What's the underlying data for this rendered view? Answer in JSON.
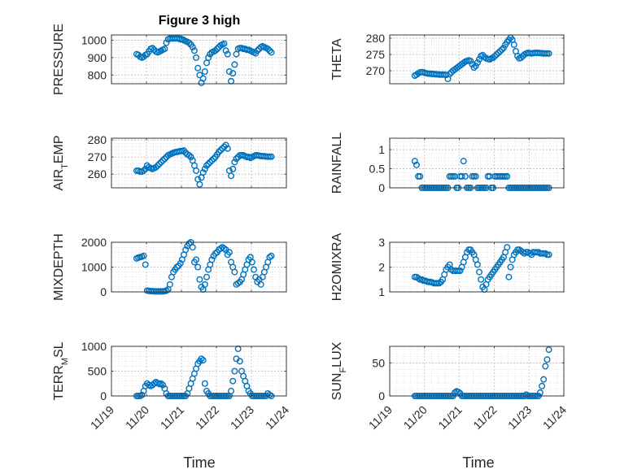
{
  "figure": {
    "title": "Figure 3 high",
    "x_tick_labels": [
      "11/19",
      "11/20",
      "11/21",
      "11/22",
      "11/23",
      "11/24"
    ],
    "xlabel": "Time",
    "marker_color": "#0072BD"
  },
  "chart_data": [
    {
      "type": "scatter",
      "ylabel": "PRESSURE",
      "xlim": [
        0,
        5
      ],
      "ylim": [
        750,
        1030
      ],
      "y_ticks": [
        800,
        900,
        1000
      ],
      "grid": true,
      "x": [
        0.72,
        0.77,
        0.82,
        0.87,
        0.92,
        0.97,
        1.02,
        1.07,
        1.12,
        1.17,
        1.22,
        1.27,
        1.32,
        1.37,
        1.42,
        1.47,
        1.52,
        1.57,
        1.62,
        1.67,
        1.72,
        1.77,
        1.82,
        1.87,
        1.92,
        1.97,
        2.02,
        2.07,
        2.12,
        2.17,
        2.22,
        2.27,
        2.32,
        2.37,
        2.42,
        2.47,
        2.52,
        2.57,
        2.62,
        2.67,
        2.72,
        2.77,
        2.82,
        2.87,
        2.92,
        2.97,
        3.02,
        3.07,
        3.12,
        3.17,
        3.22,
        3.27,
        3.32,
        3.37,
        3.42,
        3.47,
        3.52,
        3.57,
        3.62,
        3.67,
        3.72,
        3.77,
        3.82,
        3.87,
        3.92,
        3.97,
        4.02,
        4.07,
        4.12,
        4.17,
        4.22,
        4.27,
        4.32,
        4.37,
        4.42,
        4.47,
        4.52,
        4.57
      ],
      "y": [
        920,
        915,
        905,
        900,
        905,
        915,
        920,
        935,
        950,
        955,
        945,
        935,
        930,
        935,
        940,
        945,
        950,
        985,
        1005,
        1010,
        1010,
        1010,
        1010,
        1010,
        1010,
        1005,
        1005,
        1000,
        995,
        990,
        985,
        975,
        960,
        940,
        900,
        840,
        800,
        755,
        780,
        820,
        870,
        900,
        920,
        930,
        935,
        940,
        950,
        960,
        970,
        975,
        980,
        940,
        920,
        820,
        765,
        810,
        860,
        920,
        950,
        955,
        955,
        950,
        950,
        945,
        945,
        940,
        935,
        930,
        925,
        940,
        950,
        960,
        965,
        960,
        955,
        950,
        940,
        930
      ]
    },
    {
      "type": "scatter",
      "ylabel": "THETA",
      "xlim": [
        0,
        5
      ],
      "ylim": [
        266,
        281
      ],
      "y_ticks": [
        270,
        275,
        280
      ],
      "grid": true,
      "x": [
        0.72,
        0.77,
        0.82,
        0.87,
        0.92,
        0.97,
        1.02,
        1.07,
        1.12,
        1.17,
        1.22,
        1.27,
        1.32,
        1.37,
        1.42,
        1.47,
        1.52,
        1.57,
        1.62,
        1.67,
        1.72,
        1.77,
        1.82,
        1.87,
        1.92,
        1.97,
        2.02,
        2.07,
        2.12,
        2.17,
        2.22,
        2.27,
        2.32,
        2.37,
        2.42,
        2.47,
        2.52,
        2.57,
        2.62,
        2.67,
        2.72,
        2.77,
        2.82,
        2.87,
        2.92,
        2.97,
        3.02,
        3.07,
        3.12,
        3.17,
        3.22,
        3.27,
        3.32,
        3.37,
        3.42,
        3.47,
        3.52,
        3.57,
        3.62,
        3.67,
        3.72,
        3.77,
        3.82,
        3.87,
        3.92,
        3.97,
        4.02,
        4.07,
        4.12,
        4.17,
        4.22,
        4.27,
        4.32,
        4.37,
        4.42,
        4.47,
        4.52,
        4.57
      ],
      "y": [
        268.5,
        268.8,
        269.2,
        269.5,
        269.6,
        269.5,
        269.3,
        269.2,
        269.1,
        269.1,
        269.0,
        269.0,
        268.9,
        268.9,
        268.8,
        268.8,
        268.8,
        268.8,
        268.7,
        267.5,
        269.0,
        269.5,
        270.0,
        270.4,
        270.8,
        271.2,
        271.6,
        272.0,
        272.4,
        272.8,
        273.0,
        273.2,
        273.0,
        272.0,
        271.0,
        271.5,
        272.5,
        273.5,
        274.5,
        274.8,
        274.2,
        273.8,
        273.6,
        273.5,
        273.8,
        274.0,
        274.5,
        275.0,
        275.5,
        276.0,
        276.5,
        277.0,
        278.0,
        278.8,
        279.5,
        280.2,
        279.5,
        278.0,
        276.0,
        274.5,
        273.8,
        274.0,
        274.5,
        275.0,
        275.3,
        275.5,
        275.4,
        275.3,
        275.4,
        275.5,
        275.5,
        275.5,
        275.4,
        275.4,
        275.3,
        275.3,
        275.3,
        275.3
      ]
    },
    {
      "type": "scatter",
      "ylabel": "AIR_TEMP",
      "xlim": [
        0,
        5
      ],
      "ylim": [
        252,
        281
      ],
      "y_ticks": [
        260,
        270,
        280
      ],
      "grid": true,
      "x": [
        0.72,
        0.77,
        0.82,
        0.87,
        0.92,
        0.97,
        1.02,
        1.07,
        1.12,
        1.17,
        1.22,
        1.27,
        1.32,
        1.37,
        1.42,
        1.47,
        1.52,
        1.57,
        1.62,
        1.67,
        1.72,
        1.77,
        1.82,
        1.87,
        1.92,
        1.97,
        2.02,
        2.07,
        2.12,
        2.17,
        2.22,
        2.27,
        2.32,
        2.37,
        2.42,
        2.47,
        2.52,
        2.57,
        2.62,
        2.67,
        2.72,
        2.77,
        2.82,
        2.87,
        2.92,
        2.97,
        3.02,
        3.07,
        3.12,
        3.17,
        3.22,
        3.27,
        3.32,
        3.37,
        3.42,
        3.47,
        3.52,
        3.57,
        3.62,
        3.67,
        3.72,
        3.77,
        3.82,
        3.87,
        3.92,
        3.97,
        4.02,
        4.07,
        4.12,
        4.17,
        4.22,
        4.27,
        4.32,
        4.37,
        4.42,
        4.47,
        4.52,
        4.57
      ],
      "y": [
        262,
        262,
        261.5,
        261.5,
        262,
        263,
        265,
        264,
        263.5,
        263,
        263.5,
        264,
        265,
        266,
        267,
        268,
        269,
        270,
        271,
        271.5,
        272,
        272.5,
        272.8,
        273,
        273.2,
        273.5,
        273.5,
        273.8,
        272.5,
        271.5,
        271,
        270,
        268,
        265,
        262,
        257,
        254,
        258,
        261,
        263,
        265,
        266,
        267,
        268,
        269,
        270,
        271.5,
        273,
        274,
        275,
        276,
        277,
        275,
        262,
        259,
        263,
        267,
        269,
        270,
        271,
        271,
        271,
        270.5,
        270,
        270,
        269.5,
        270,
        270.5,
        271,
        271,
        270.8,
        270.6,
        270.5,
        270.5,
        270.3,
        270.2,
        270.2,
        270.2
      ]
    },
    {
      "type": "scatter",
      "ylabel": "RAINFALL",
      "xlim": [
        0,
        5
      ],
      "ylim": [
        0,
        1.3
      ],
      "y_ticks": [
        0,
        0.5,
        1
      ],
      "grid": true,
      "x": [
        0.72,
        0.77,
        0.82,
        0.87,
        0.92,
        0.97,
        1.02,
        1.07,
        1.12,
        1.17,
        1.22,
        1.27,
        1.32,
        1.37,
        1.42,
        1.47,
        1.52,
        1.57,
        1.62,
        1.67,
        1.72,
        1.77,
        1.82,
        1.87,
        1.92,
        1.97,
        2.02,
        2.07,
        2.12,
        2.17,
        2.22,
        2.27,
        2.32,
        2.37,
        2.42,
        2.47,
        2.52,
        2.57,
        2.62,
        2.67,
        2.72,
        2.77,
        2.82,
        2.87,
        2.92,
        2.97,
        3.02,
        3.07,
        3.12,
        3.17,
        3.22,
        3.27,
        3.32,
        3.37,
        3.42,
        3.47,
        3.52,
        3.57,
        3.62,
        3.67,
        3.72,
        3.77,
        3.82,
        3.87,
        3.92,
        3.97,
        4.02,
        4.07,
        4.12,
        4.17,
        4.22,
        4.27,
        4.32,
        4.37,
        4.42,
        4.47,
        4.52,
        4.57
      ],
      "y": [
        0.7,
        0.6,
        0.3,
        0.3,
        0,
        0,
        0,
        0,
        0,
        0,
        0,
        0,
        0,
        0,
        0,
        0,
        0,
        0,
        0,
        0,
        0.3,
        0.3,
        0.3,
        0.3,
        0,
        0,
        0.3,
        0.3,
        0.7,
        0.3,
        0,
        0,
        0,
        0.3,
        0.3,
        0.3,
        0,
        0,
        0,
        0,
        0,
        0,
        0.3,
        0.3,
        0,
        0,
        0.3,
        0.3,
        0.3,
        0.3,
        0.3,
        0.3,
        0.3,
        0.3,
        0,
        0,
        0,
        0,
        0,
        0,
        0,
        0,
        0,
        0,
        0,
        0,
        0,
        0,
        0,
        0,
        0,
        0,
        0,
        0,
        0,
        0,
        0,
        0
      ]
    },
    {
      "type": "scatter",
      "ylabel": "MIXDEPTH",
      "xlim": [
        0,
        5
      ],
      "ylim": [
        0,
        2000
      ],
      "y_ticks": [
        0,
        1000,
        2000
      ],
      "grid": true,
      "x": [
        0.72,
        0.77,
        0.82,
        0.87,
        0.92,
        0.97,
        1.02,
        1.07,
        1.12,
        1.17,
        1.22,
        1.27,
        1.32,
        1.37,
        1.42,
        1.47,
        1.52,
        1.57,
        1.62,
        1.67,
        1.72,
        1.77,
        1.82,
        1.87,
        1.92,
        1.97,
        2.02,
        2.07,
        2.12,
        2.17,
        2.22,
        2.27,
        2.32,
        2.37,
        2.42,
        2.47,
        2.52,
        2.57,
        2.62,
        2.67,
        2.72,
        2.77,
        2.82,
        2.87,
        2.92,
        2.97,
        3.02,
        3.07,
        3.12,
        3.17,
        3.22,
        3.27,
        3.32,
        3.37,
        3.42,
        3.47,
        3.52,
        3.57,
        3.62,
        3.67,
        3.72,
        3.77,
        3.82,
        3.87,
        3.92,
        3.97,
        4.02,
        4.07,
        4.12,
        4.17,
        4.22,
        4.27,
        4.32,
        4.37,
        4.42,
        4.47,
        4.52,
        4.57
      ],
      "y": [
        1350,
        1380,
        1400,
        1420,
        1450,
        1100,
        50,
        40,
        30,
        30,
        20,
        20,
        20,
        20,
        20,
        20,
        30,
        50,
        100,
        300,
        600,
        800,
        900,
        1000,
        1050,
        1150,
        1300,
        1500,
        1700,
        1850,
        1950,
        2000,
        1800,
        1200,
        1300,
        1000,
        500,
        200,
        100,
        300,
        600,
        900,
        1100,
        1300,
        1450,
        1550,
        1600,
        1700,
        1750,
        1800,
        1750,
        1700,
        1500,
        1600,
        1200,
        1000,
        800,
        300,
        350,
        400,
        500,
        700,
        900,
        1100,
        1300,
        1400,
        1200,
        900,
        600,
        400,
        500,
        300,
        600,
        800,
        1000,
        1200,
        1400,
        1450
      ]
    },
    {
      "type": "scatter",
      "ylabel": "H2OMIXRA",
      "xlim": [
        0,
        5
      ],
      "ylim": [
        1,
        3
      ],
      "y_ticks": [
        1,
        2,
        3
      ],
      "grid": true,
      "x": [
        0.72,
        0.77,
        0.82,
        0.87,
        0.92,
        0.97,
        1.02,
        1.07,
        1.12,
        1.17,
        1.22,
        1.27,
        1.32,
        1.37,
        1.42,
        1.47,
        1.52,
        1.57,
        1.62,
        1.67,
        1.72,
        1.77,
        1.82,
        1.87,
        1.92,
        1.97,
        2.02,
        2.07,
        2.12,
        2.17,
        2.22,
        2.27,
        2.32,
        2.37,
        2.42,
        2.47,
        2.52,
        2.57,
        2.62,
        2.67,
        2.72,
        2.77,
        2.82,
        2.87,
        2.92,
        2.97,
        3.02,
        3.07,
        3.12,
        3.17,
        3.22,
        3.27,
        3.32,
        3.37,
        3.42,
        3.47,
        3.52,
        3.57,
        3.62,
        3.67,
        3.72,
        3.77,
        3.82,
        3.87,
        3.92,
        3.97,
        4.02,
        4.07,
        4.12,
        4.17,
        4.22,
        4.27,
        4.32,
        4.37,
        4.42,
        4.47,
        4.52,
        4.57
      ],
      "y": [
        1.6,
        1.6,
        1.55,
        1.5,
        1.5,
        1.45,
        1.45,
        1.42,
        1.4,
        1.4,
        1.38,
        1.35,
        1.35,
        1.35,
        1.35,
        1.4,
        1.5,
        1.7,
        1.9,
        2.0,
        2.1,
        1.9,
        1.85,
        1.85,
        1.85,
        1.85,
        1.85,
        2.0,
        2.2,
        2.4,
        2.6,
        2.7,
        2.7,
        2.6,
        2.5,
        2.3,
        2.1,
        1.8,
        1.5,
        1.2,
        1.1,
        1.3,
        1.5,
        1.6,
        1.7,
        1.8,
        1.9,
        2.0,
        2.1,
        2.2,
        2.3,
        2.4,
        2.6,
        2.8,
        1.6,
        2.0,
        2.3,
        2.5,
        2.6,
        2.7,
        2.7,
        2.65,
        2.6,
        2.55,
        2.6,
        2.6,
        2.55,
        2.5,
        2.6,
        2.6,
        2.6,
        2.6,
        2.55,
        2.55,
        2.55,
        2.55,
        2.5,
        2.5
      ]
    },
    {
      "type": "scatter",
      "ylabel": "TERR_MSL",
      "xlim": [
        0,
        5
      ],
      "ylim": [
        0,
        1000
      ],
      "y_ticks": [
        0,
        500,
        1000
      ],
      "grid": true,
      "x": [
        0.72,
        0.77,
        0.82,
        0.87,
        0.92,
        0.97,
        1.02,
        1.07,
        1.12,
        1.17,
        1.22,
        1.27,
        1.32,
        1.37,
        1.42,
        1.47,
        1.52,
        1.57,
        1.62,
        1.67,
        1.72,
        1.77,
        1.82,
        1.87,
        1.92,
        1.97,
        2.02,
        2.07,
        2.12,
        2.17,
        2.22,
        2.27,
        2.32,
        2.37,
        2.42,
        2.47,
        2.52,
        2.57,
        2.62,
        2.67,
        2.72,
        2.77,
        2.82,
        2.87,
        2.92,
        2.97,
        3.02,
        3.07,
        3.12,
        3.17,
        3.22,
        3.27,
        3.32,
        3.37,
        3.42,
        3.47,
        3.52,
        3.57,
        3.62,
        3.67,
        3.72,
        3.77,
        3.82,
        3.87,
        3.92,
        3.97,
        4.02,
        4.07,
        4.12,
        4.17,
        4.22,
        4.27,
        4.32,
        4.37,
        4.42,
        4.47,
        4.52,
        4.57
      ],
      "y": [
        0,
        0,
        0,
        20,
        100,
        200,
        250,
        220,
        200,
        220,
        250,
        280,
        260,
        240,
        250,
        220,
        150,
        50,
        0,
        0,
        0,
        0,
        0,
        0,
        0,
        0,
        0,
        0,
        0,
        50,
        150,
        250,
        350,
        450,
        550,
        650,
        700,
        750,
        720,
        250,
        100,
        50,
        0,
        0,
        0,
        0,
        0,
        0,
        0,
        0,
        0,
        0,
        0,
        0,
        100,
        300,
        500,
        750,
        950,
        700,
        500,
        400,
        300,
        200,
        100,
        50,
        0,
        0,
        0,
        0,
        0,
        0,
        0,
        0,
        0,
        50,
        20,
        0
      ]
    },
    {
      "type": "scatter",
      "ylabel": "SUN_FLUX",
      "xlim": [
        0,
        5
      ],
      "ylim": [
        0,
        75
      ],
      "y_ticks": [
        0,
        50
      ],
      "grid": true,
      "x": [
        0.72,
        0.77,
        0.82,
        0.87,
        0.92,
        0.97,
        1.02,
        1.07,
        1.12,
        1.17,
        1.22,
        1.27,
        1.32,
        1.37,
        1.42,
        1.47,
        1.52,
        1.57,
        1.62,
        1.67,
        1.72,
        1.77,
        1.82,
        1.87,
        1.92,
        1.97,
        2.02,
        2.07,
        2.12,
        2.17,
        2.22,
        2.27,
        2.32,
        2.37,
        2.42,
        2.47,
        2.52,
        2.57,
        2.62,
        2.67,
        2.72,
        2.77,
        2.82,
        2.87,
        2.92,
        2.97,
        3.02,
        3.07,
        3.12,
        3.17,
        3.22,
        3.27,
        3.32,
        3.37,
        3.42,
        3.47,
        3.52,
        3.57,
        3.62,
        3.67,
        3.72,
        3.77,
        3.82,
        3.87,
        3.92,
        3.97,
        4.02,
        4.07,
        4.12,
        4.17,
        4.22,
        4.27,
        4.32,
        4.37,
        4.42,
        4.47,
        4.52,
        4.57
      ],
      "y": [
        0,
        0,
        0,
        0,
        0,
        0,
        0,
        0,
        0,
        0,
        0,
        0,
        0,
        0,
        0,
        0,
        0,
        0,
        0,
        0,
        0,
        0,
        0,
        5,
        7,
        6,
        4,
        0,
        0,
        0,
        0,
        0,
        0,
        0,
        0,
        0,
        0,
        0,
        0,
        0,
        0,
        0,
        0,
        0,
        0,
        0,
        0,
        0,
        0,
        0,
        0,
        0,
        0,
        0,
        0,
        0,
        0,
        0,
        0,
        0,
        0,
        0,
        0,
        0,
        2,
        0,
        0,
        0,
        0,
        0,
        0,
        0,
        5,
        15,
        25,
        45,
        55,
        70
      ]
    }
  ]
}
